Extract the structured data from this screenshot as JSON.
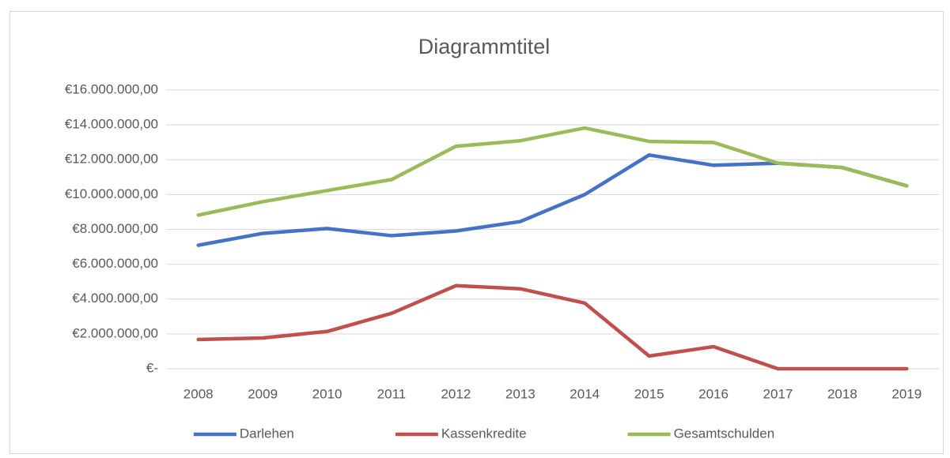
{
  "chart_data": {
    "type": "line",
    "title": "Diagrammtitel",
    "categories": [
      "2008",
      "2009",
      "2010",
      "2011",
      "2012",
      "2013",
      "2014",
      "2015",
      "2016",
      "2017",
      "2018",
      "2019"
    ],
    "series": [
      {
        "name": "Darlehen",
        "color": "#4472c4",
        "values": [
          7090000,
          7770000,
          8050000,
          7640000,
          7910000,
          8450000,
          10000000,
          12270000,
          11680000,
          11800000,
          11550000,
          10500000
        ]
      },
      {
        "name": "Kassenkredite",
        "color": "#c0504d",
        "values": [
          1680000,
          1770000,
          2140000,
          3180000,
          4770000,
          4590000,
          3770000,
          730000,
          1270000,
          0,
          0,
          0
        ]
      },
      {
        "name": "Gesamtschulden",
        "color": "#9bbb59",
        "values": [
          8820000,
          9590000,
          10230000,
          10860000,
          12770000,
          13090000,
          13820000,
          13050000,
          12990000,
          11800000,
          11550000,
          10500000
        ]
      }
    ],
    "ylim": [
      0,
      16000000
    ],
    "yticks": [
      {
        "value": 0,
        "label": "€-"
      },
      {
        "value": 2000000,
        "label": "€2.000.000,00"
      },
      {
        "value": 4000000,
        "label": "€4.000.000,00"
      },
      {
        "value": 6000000,
        "label": "€6.000.000,00"
      },
      {
        "value": 8000000,
        "label": "€8.000.000,00"
      },
      {
        "value": 10000000,
        "label": "€10.000.000,00"
      },
      {
        "value": 12000000,
        "label": "€12.000.000,00"
      },
      {
        "value": 14000000,
        "label": "€14.000.000,00"
      },
      {
        "value": 16000000,
        "label": "€16.000.000,00"
      }
    ],
    "grid": true,
    "legend": "bottom"
  }
}
